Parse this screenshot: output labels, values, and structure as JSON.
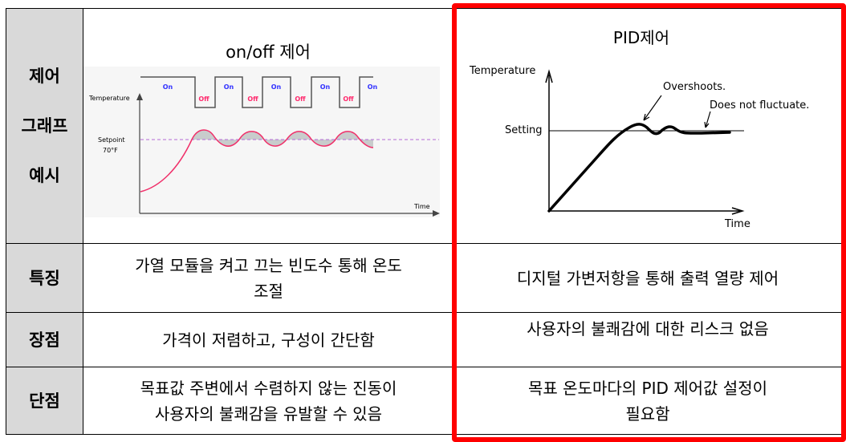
{
  "table": {
    "labels": {
      "graph_line1": "제어",
      "graph_line2": "그래프",
      "graph_line3": "예시",
      "features": "특징",
      "pros": "장점",
      "cons": "단점"
    },
    "onoff": {
      "title": "on/off 제어",
      "chart": {
        "y_label": "Temperature",
        "x_label": "Time",
        "setpoint_label": "Setpoint",
        "setpoint_value": "70°F",
        "on_label": "On",
        "off_label": "Off",
        "on_color": "#3333ff",
        "off_color": "#ff2a6d",
        "curve_color": "#f0306a",
        "setpoint_color": "#b46ad6"
      },
      "features_line1": "가열 모듈을 켜고 끄는 빈도수 통해 온도",
      "features_line2": "조절",
      "pros": "가격이 저렴하고, 구성이 간단함",
      "cons_line1": "목표값 주변에서 수렴하지 않는 진동이",
      "cons_line2": "사용자의 불쾌감을 유발할 수 있음"
    },
    "pid": {
      "title": "PID제어",
      "chart": {
        "y_label": "Temperature",
        "x_label": "Time",
        "setting_label": "Setting",
        "annotation_overshoot": "Overshoots.",
        "annotation_stable": "Does not fluctuate."
      },
      "features": "디지털 가변저항을 통해 출력 열량 제어",
      "pros": "사용자의 불쾌감에 대한 리스크 없음",
      "cons_line1": "목표 온도마다의 PID 제어값 설정이",
      "cons_line2": "필요함"
    },
    "highlight_color": "#ff0000",
    "label_bg": "#d9d9d9"
  }
}
